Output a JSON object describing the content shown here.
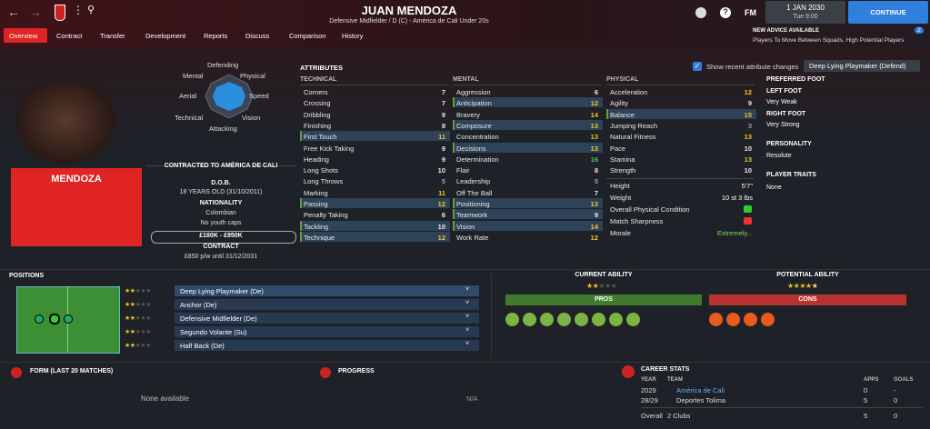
{
  "header": {
    "name": "JUAN MENDOZA",
    "subtitle": "Defensive Midfielder / D (C) - América de Cali Under 20s",
    "fm": "FM",
    "date": "1 JAN 2030",
    "time": "Tue 9:00",
    "continue": "CONTINUE",
    "advice_title": "NEW ADVICE AVAILABLE",
    "advice_text": "Players To Move Between Squads, High Potential Players",
    "badge": "2"
  },
  "nav": [
    "Overview",
    "Contract",
    "Transfer",
    "Development",
    "Reports",
    "Discuss",
    "Comparison",
    "History"
  ],
  "player": {
    "short_name": "MENDOZA",
    "contract_club": "CONTRACTED TO AMÉRICA DE CALI",
    "dob_label": "D.O.B.",
    "dob": "18 YEARS OLD (31/10/2011)",
    "nationality_label": "NATIONALITY",
    "nationality": "Colombian",
    "caps": "No youth caps",
    "value": "£180K - £950K",
    "contract_label": "CONTRACT",
    "wage": "£850 p/w until 31/12/2031"
  },
  "radar": [
    "Defending",
    "Physical",
    "Speed",
    "Vision",
    "Attacking",
    "Technical",
    "Aerial",
    "Mental"
  ],
  "attributes": {
    "title": "ATTRIBUTES",
    "show_recent": "Show recent attribute changes",
    "role": "Deep Lying Playmaker (Defend)",
    "technical": {
      "heading": "TECHNICAL",
      "items": [
        {
          "name": "Corners",
          "value": 7,
          "key": false
        },
        {
          "name": "Crossing",
          "value": 7,
          "key": false
        },
        {
          "name": "Dribbling",
          "value": 9,
          "key": false
        },
        {
          "name": "Finishing",
          "value": 8,
          "key": false
        },
        {
          "name": "First Touch",
          "value": 11,
          "key": true
        },
        {
          "name": "Free Kick Taking",
          "value": 9,
          "key": false
        },
        {
          "name": "Heading",
          "value": 9,
          "key": false
        },
        {
          "name": "Long Shots",
          "value": 10,
          "key": false
        },
        {
          "name": "Long Throws",
          "value": 5,
          "key": false
        },
        {
          "name": "Marking",
          "value": 11,
          "key": false
        },
        {
          "name": "Passing",
          "value": 12,
          "key": true
        },
        {
          "name": "Penalty Taking",
          "value": 6,
          "key": false
        },
        {
          "name": "Tackling",
          "value": 10,
          "key": true
        },
        {
          "name": "Technique",
          "value": 12,
          "key": true
        }
      ]
    },
    "mental": {
      "heading": "MENTAL",
      "items": [
        {
          "name": "Aggression",
          "value": 6,
          "key": false
        },
        {
          "name": "Anticipation",
          "value": 12,
          "key": true
        },
        {
          "name": "Bravery",
          "value": 14,
          "key": false
        },
        {
          "name": "Composure",
          "value": 13,
          "key": true
        },
        {
          "name": "Concentration",
          "value": 13,
          "key": false
        },
        {
          "name": "Decisions",
          "value": 13,
          "key": true
        },
        {
          "name": "Determination",
          "value": 16,
          "key": false
        },
        {
          "name": "Flair",
          "value": 8,
          "key": false
        },
        {
          "name": "Leadership",
          "value": 5,
          "key": false
        },
        {
          "name": "Off The Ball",
          "value": 7,
          "key": false
        },
        {
          "name": "Positioning",
          "value": 13,
          "key": true
        },
        {
          "name": "Teamwork",
          "value": 9,
          "key": true
        },
        {
          "name": "Vision",
          "value": 14,
          "key": true
        },
        {
          "name": "Work Rate",
          "value": 12,
          "key": false
        }
      ]
    },
    "physical": {
      "heading": "PHYSICAL",
      "items": [
        {
          "name": "Acceleration",
          "value": 12,
          "key": false
        },
        {
          "name": "Agility",
          "value": 9,
          "key": false
        },
        {
          "name": "Balance",
          "value": 15,
          "key": true
        },
        {
          "name": "Jumping Reach",
          "value": 3,
          "key": false
        },
        {
          "name": "Natural Fitness",
          "value": 13,
          "key": false
        },
        {
          "name": "Pace",
          "value": 10,
          "key": false
        },
        {
          "name": "Stamina",
          "value": 13,
          "key": false
        },
        {
          "name": "Strength",
          "value": 10,
          "key": false
        }
      ]
    },
    "other": [
      {
        "name": "Height",
        "value": "5'7\""
      },
      {
        "name": "Weight",
        "value": "10 st 3 lbs"
      },
      {
        "name": "Overall Physical Condition"
      },
      {
        "name": "Match Sharpness"
      },
      {
        "name": "Morale",
        "value": "Extremely..."
      }
    ]
  },
  "side": {
    "preferred_foot": "PREFERRED FOOT",
    "left_foot": "LEFT FOOT",
    "left_value": "Very Weak",
    "right_foot": "RIGHT FOOT",
    "right_value": "Very Strong",
    "personality": "PERSONALITY",
    "personality_value": "Resolute",
    "traits": "PLAYER TRAITS",
    "traits_value": "None"
  },
  "positions": {
    "title": "POSITIONS",
    "roles": [
      {
        "name": "Deep Lying Playmaker (De)",
        "stars": 2
      },
      {
        "name": "Anchor (De)",
        "stars": 2
      },
      {
        "name": "Defensive Midfielder (De)",
        "stars": 2
      },
      {
        "name": "Segundo Volante (Su)",
        "stars": 2
      },
      {
        "name": "Half Back (De)",
        "stars": 2
      }
    ]
  },
  "ability": {
    "current": "CURRENT ABILITY",
    "current_stars": 2,
    "potential": "POTENTIAL ABILITY",
    "potential_stars": 4.5,
    "pros": "PROS",
    "cons": "CONS"
  },
  "form": {
    "title": "FORM (LAST 20 MATCHES)",
    "empty": "None available"
  },
  "progress": {
    "title": "PROGRESS",
    "empty": "N/A"
  },
  "career": {
    "title": "CAREER STATS",
    "headers": [
      "YEAR",
      "TEAM",
      "APPS",
      "GOALS"
    ],
    "rows": [
      [
        "2029",
        "América de Cali",
        "0",
        "-"
      ],
      [
        "28/29",
        "Deportes Tolima",
        "5",
        "0"
      ],
      [
        "Overall",
        "2 Clubs",
        "5",
        "0"
      ]
    ]
  }
}
